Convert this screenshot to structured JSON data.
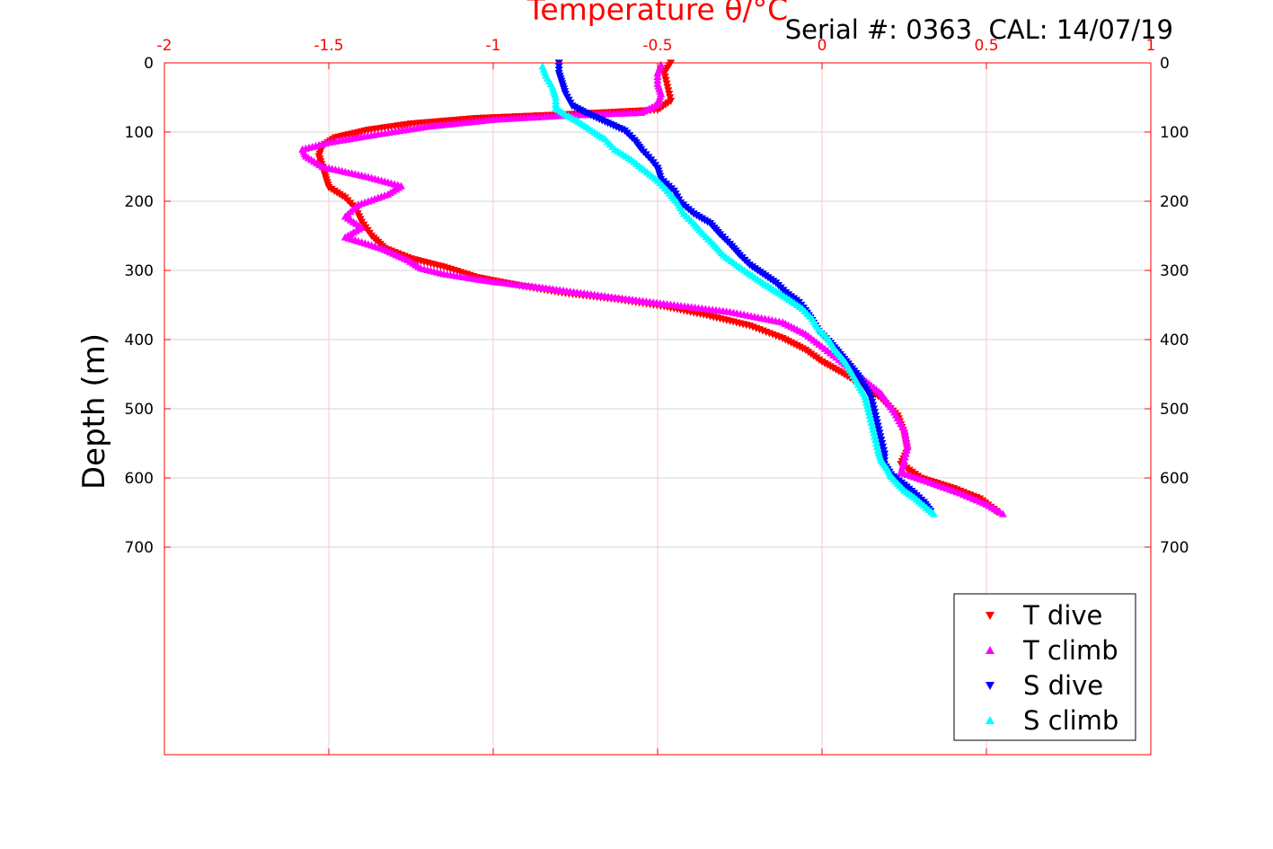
{
  "chart_data": {
    "type": "scatter",
    "title": "Temperature θ/°C",
    "subtitle": "Serial #: 0363  CAL: 14/07/19",
    "xlabel": "",
    "ylabel": "Depth (m)",
    "xlim": [
      -2,
      1
    ],
    "ylim": [
      0,
      1000
    ],
    "y_reversed": true,
    "x_axis_position": "top",
    "x_ticks": [
      "-2",
      "-1.5",
      "-1",
      "-0.5",
      "0",
      "0.5",
      "1"
    ],
    "y_ticks": [
      "0",
      "100",
      "200",
      "300",
      "400",
      "500",
      "600",
      "700"
    ],
    "grid": true,
    "legend_position": "bottom-right",
    "colors": {
      "axis": "#ff0000",
      "grid": "#f4c8cf"
    },
    "series": [
      {
        "name": "T dive",
        "color": "#ff0000",
        "marker": "triangle-down",
        "points": [
          [
            -0.46,
            0
          ],
          [
            -0.48,
            15
          ],
          [
            -0.47,
            35
          ],
          [
            -0.46,
            55
          ],
          [
            -0.5,
            68
          ],
          [
            -0.8,
            75
          ],
          [
            -1.05,
            80
          ],
          [
            -1.25,
            88
          ],
          [
            -1.38,
            97
          ],
          [
            -1.48,
            108
          ],
          [
            -1.52,
            120
          ],
          [
            -1.53,
            135
          ],
          [
            -1.52,
            150
          ],
          [
            -1.51,
            165
          ],
          [
            -1.5,
            180
          ],
          [
            -1.45,
            195
          ],
          [
            -1.42,
            210
          ],
          [
            -1.4,
            230
          ],
          [
            -1.37,
            250
          ],
          [
            -1.33,
            268
          ],
          [
            -1.25,
            283
          ],
          [
            -1.15,
            295
          ],
          [
            -1.05,
            310
          ],
          [
            -0.92,
            322
          ],
          [
            -0.78,
            333
          ],
          [
            -0.62,
            342
          ],
          [
            -0.48,
            352
          ],
          [
            -0.35,
            365
          ],
          [
            -0.22,
            380
          ],
          [
            -0.12,
            398
          ],
          [
            -0.05,
            415
          ],
          [
            0.0,
            432
          ],
          [
            0.06,
            448
          ],
          [
            0.12,
            465
          ],
          [
            0.18,
            485
          ],
          [
            0.23,
            510
          ],
          [
            0.25,
            535
          ],
          [
            0.26,
            560
          ],
          [
            0.24,
            580
          ],
          [
            0.3,
            600
          ],
          [
            0.4,
            615
          ],
          [
            0.48,
            630
          ],
          [
            0.53,
            648
          ]
        ]
      },
      {
        "name": "T climb",
        "color": "#ff00ff",
        "marker": "triangle-up",
        "points": [
          [
            0.55,
            652
          ],
          [
            0.5,
            638
          ],
          [
            0.42,
            622
          ],
          [
            0.32,
            605
          ],
          [
            0.24,
            592
          ],
          [
            0.25,
            575
          ],
          [
            0.26,
            555
          ],
          [
            0.25,
            530
          ],
          [
            0.22,
            505
          ],
          [
            0.18,
            478
          ],
          [
            0.12,
            455
          ],
          [
            0.06,
            432
          ],
          [
            0.0,
            410
          ],
          [
            -0.05,
            392
          ],
          [
            -0.12,
            375
          ],
          [
            -0.28,
            360
          ],
          [
            -0.45,
            350
          ],
          [
            -0.65,
            338
          ],
          [
            -0.85,
            325
          ],
          [
            -1.02,
            315
          ],
          [
            -1.15,
            305
          ],
          [
            -1.22,
            297
          ],
          [
            -1.26,
            285
          ],
          [
            -1.34,
            268
          ],
          [
            -1.45,
            252
          ],
          [
            -1.4,
            238
          ],
          [
            -1.45,
            222
          ],
          [
            -1.41,
            205
          ],
          [
            -1.32,
            190
          ],
          [
            -1.28,
            178
          ],
          [
            -1.38,
            165
          ],
          [
            -1.52,
            150
          ],
          [
            -1.57,
            135
          ],
          [
            -1.58,
            125
          ],
          [
            -1.5,
            115
          ],
          [
            -1.35,
            103
          ],
          [
            -1.2,
            92
          ],
          [
            -1.0,
            82
          ],
          [
            -0.78,
            76
          ],
          [
            -0.55,
            72
          ],
          [
            -0.5,
            60
          ],
          [
            -0.49,
            45
          ],
          [
            -0.5,
            30
          ],
          [
            -0.5,
            15
          ],
          [
            -0.49,
            3
          ]
        ]
      },
      {
        "name": "S dive",
        "color": "#0000ff",
        "marker": "triangle-down",
        "points": [
          [
            -0.8,
            0
          ],
          [
            -0.8,
            15
          ],
          [
            -0.79,
            30
          ],
          [
            -0.78,
            45
          ],
          [
            -0.76,
            62
          ],
          [
            -0.72,
            72
          ],
          [
            -0.66,
            85
          ],
          [
            -0.6,
            98
          ],
          [
            -0.57,
            112
          ],
          [
            -0.55,
            125
          ],
          [
            -0.52,
            140
          ],
          [
            -0.5,
            152
          ],
          [
            -0.49,
            168
          ],
          [
            -0.45,
            185
          ],
          [
            -0.43,
            202
          ],
          [
            -0.39,
            218
          ],
          [
            -0.34,
            232
          ],
          [
            -0.31,
            248
          ],
          [
            -0.28,
            262
          ],
          [
            -0.25,
            278
          ],
          [
            -0.22,
            292
          ],
          [
            -0.18,
            305
          ],
          [
            -0.14,
            318
          ],
          [
            -0.11,
            332
          ],
          [
            -0.07,
            346
          ],
          [
            -0.05,
            358
          ],
          [
            -0.03,
            372
          ],
          [
            -0.01,
            388
          ],
          [
            0.02,
            402
          ],
          [
            0.05,
            418
          ],
          [
            0.08,
            435
          ],
          [
            0.11,
            452
          ],
          [
            0.13,
            468
          ],
          [
            0.15,
            485
          ],
          [
            0.16,
            505
          ],
          [
            0.17,
            525
          ],
          [
            0.18,
            545
          ],
          [
            0.19,
            565
          ],
          [
            0.19,
            580
          ],
          [
            0.21,
            595
          ],
          [
            0.25,
            610
          ],
          [
            0.28,
            622
          ],
          [
            0.31,
            635
          ],
          [
            0.33,
            648
          ]
        ]
      },
      {
        "name": "S climb",
        "color": "#00ffff",
        "marker": "triangle-up",
        "points": [
          [
            0.34,
            652
          ],
          [
            0.31,
            640
          ],
          [
            0.28,
            628
          ],
          [
            0.25,
            618
          ],
          [
            0.23,
            608
          ],
          [
            0.21,
            598
          ],
          [
            0.2,
            588
          ],
          [
            0.18,
            575
          ],
          [
            0.17,
            560
          ],
          [
            0.16,
            540
          ],
          [
            0.15,
            520
          ],
          [
            0.14,
            500
          ],
          [
            0.13,
            482
          ],
          [
            0.11,
            465
          ],
          [
            0.09,
            448
          ],
          [
            0.07,
            432
          ],
          [
            0.04,
            415
          ],
          [
            0.02,
            400
          ],
          [
            -0.01,
            385
          ],
          [
            -0.03,
            370
          ],
          [
            -0.06,
            355
          ],
          [
            -0.1,
            342
          ],
          [
            -0.14,
            330
          ],
          [
            -0.18,
            318
          ],
          [
            -0.22,
            305
          ],
          [
            -0.26,
            292
          ],
          [
            -0.3,
            278
          ],
          [
            -0.33,
            262
          ],
          [
            -0.36,
            248
          ],
          [
            -0.39,
            232
          ],
          [
            -0.42,
            218
          ],
          [
            -0.44,
            202
          ],
          [
            -0.47,
            185
          ],
          [
            -0.5,
            170
          ],
          [
            -0.54,
            155
          ],
          [
            -0.58,
            140
          ],
          [
            -0.63,
            125
          ],
          [
            -0.66,
            110
          ],
          [
            -0.7,
            98
          ],
          [
            -0.74,
            85
          ],
          [
            -0.78,
            75
          ],
          [
            -0.81,
            65
          ],
          [
            -0.81,
            50
          ],
          [
            -0.82,
            35
          ],
          [
            -0.84,
            18
          ],
          [
            -0.85,
            5
          ]
        ]
      }
    ]
  }
}
